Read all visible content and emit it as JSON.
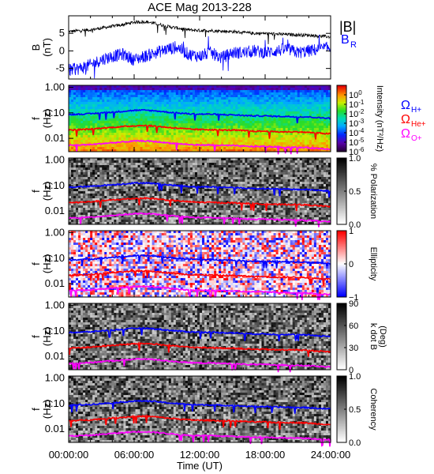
{
  "title": "ACE Mag 2013-228",
  "xlabel": "Time (UT)",
  "x_ticks": [
    "00:00:00",
    "06:00:00",
    "12:00:00",
    "18:00:00",
    "24:00:00"
  ],
  "colors": {
    "black": "#000000",
    "blue": "#0000ff",
    "red": "#ff0000",
    "magenta": "#ff00ff"
  },
  "chart_data": [
    {
      "type": "line",
      "title": "ACE Mag 2013-228",
      "xlabel": "",
      "ylabel": "B (nT)",
      "xlim": [
        0,
        24
      ],
      "ylim": [
        -8,
        10
      ],
      "y_ticks": [
        "5",
        "0",
        "-5"
      ],
      "y_tick_values": [
        5,
        0,
        -5
      ],
      "series": [
        {
          "name": "|B|",
          "color": "#000000",
          "x": [
            0,
            1,
            2,
            3,
            4,
            5,
            6,
            7,
            8,
            9,
            10,
            11,
            12,
            13,
            14,
            15,
            16,
            17,
            18,
            19,
            20,
            21,
            22,
            23,
            24
          ],
          "values": [
            5.5,
            5.8,
            6.0,
            6.5,
            7.0,
            7.5,
            8.2,
            8.3,
            7.8,
            7.0,
            6.5,
            6.0,
            5.8,
            5.8,
            5.6,
            5.5,
            5.2,
            5.0,
            5.0,
            4.8,
            4.7,
            4.6,
            4.5,
            4.2,
            4.0
          ]
        },
        {
          "name": "B",
          "subscript": "R",
          "color": "#0000ff",
          "x": [
            0,
            1,
            2,
            3,
            4,
            5,
            6,
            7,
            8,
            9,
            10,
            11,
            12,
            13,
            14,
            15,
            16,
            17,
            18,
            19,
            20,
            21,
            22,
            23,
            24
          ],
          "values": [
            -5.5,
            -5.0,
            -4.0,
            -2.5,
            -1.5,
            -1.0,
            -2.5,
            -1.5,
            -0.5,
            0.5,
            1.0,
            -1.0,
            -1.5,
            -0.5,
            -2.0,
            -0.5,
            -0.5,
            0.0,
            -0.5,
            0.0,
            0.5,
            -0.5,
            0.0,
            0.5,
            1.0
          ]
        }
      ],
      "legend_placement": "right"
    },
    {
      "type": "heatmap",
      "ylabel": "f (Hz)",
      "y_scale": "log",
      "ylim": [
        0.003,
        1.2
      ],
      "y_ticks": [
        "1.00",
        "0.10",
        "0.01"
      ],
      "y_tick_values": [
        1,
        0.1,
        0.01
      ],
      "colorbar": {
        "label": "Intensity (nT²/Hz)",
        "scale": "log",
        "range": [
          1e-06,
          10.0
        ],
        "colormap": "rainbow",
        "ticks": [
          "10",
          "10",
          "10",
          "10",
          "10",
          "10",
          "10"
        ],
        "tick_exponents": [
          "0",
          "-1",
          "-2",
          "-3",
          "-4",
          "-5",
          "-6"
        ],
        "tick_values": [
          1,
          0.1,
          0.01,
          0.001,
          0.0001,
          1e-05,
          1e-06
        ]
      },
      "legend": [
        {
          "name": "Ω",
          "subscript": "H+",
          "color": "#0000ff"
        },
        {
          "name": "Ω",
          "subscript": "He+",
          "color": "#ff0000"
        },
        {
          "name": "Ω",
          "subscript": "O+",
          "color": "#ff00ff"
        }
      ],
      "legend_placement": "right"
    },
    {
      "type": "heatmap",
      "ylabel": "f (Hz)",
      "y_scale": "log",
      "ylim": [
        0.003,
        1.2
      ],
      "y_ticks": [
        "1.00",
        "0.10",
        "0.01"
      ],
      "y_tick_values": [
        1,
        0.1,
        0.01
      ],
      "colorbar": {
        "label": "% Polarization",
        "range": [
          0,
          1
        ],
        "colormap": "gray",
        "ticks": [
          "1.0",
          "0.5",
          "0.0"
        ],
        "tick_values": [
          1.0,
          0.5,
          0.0
        ]
      }
    },
    {
      "type": "heatmap",
      "ylabel": "f (Hz)",
      "y_scale": "log",
      "ylim": [
        0.003,
        1.2
      ],
      "y_ticks": [
        "1.00",
        "0.10",
        "0.01"
      ],
      "y_tick_values": [
        1,
        0.1,
        0.01
      ],
      "colorbar": {
        "label": "Ellipticity",
        "range": [
          -1,
          1
        ],
        "colormap": "blue-white-red",
        "ticks": [
          "1",
          "0",
          "−1"
        ],
        "tick_values": [
          1,
          0,
          -1
        ]
      }
    },
    {
      "type": "heatmap",
      "ylabel": "f (Hz)",
      "y_scale": "log",
      "ylim": [
        0.003,
        1.2
      ],
      "y_ticks": [
        "1.00",
        "0.10",
        "0.01"
      ],
      "y_tick_values": [
        1,
        0.1,
        0.01
      ],
      "colorbar": {
        "label": "k dot B (Deg)",
        "label_line1": "k dot B",
        "label_line2": "(Deg)",
        "range": [
          0,
          90
        ],
        "colormap": "gray",
        "ticks": [
          "90",
          "60",
          "30",
          "0"
        ],
        "tick_values": [
          90,
          60,
          30,
          0
        ]
      }
    },
    {
      "type": "heatmap",
      "ylabel": "f (Hz)",
      "y_scale": "log",
      "ylim": [
        0.003,
        1.2
      ],
      "y_ticks": [
        "1.00",
        "0.10",
        "0.01"
      ],
      "y_tick_values": [
        1,
        0.1,
        0.01
      ],
      "colorbar": {
        "label": "Coherency",
        "range": [
          0,
          1
        ],
        "colormap": "gray",
        "ticks": [
          "1.0",
          "0.5",
          "0.0"
        ],
        "tick_values": [
          1.0,
          0.5,
          0.0
        ]
      }
    }
  ],
  "gyrofrequency_curves": {
    "x": [
      0,
      1,
      2,
      3,
      4,
      5,
      6,
      7,
      8,
      9,
      10,
      11,
      12,
      13,
      14,
      15,
      16,
      17,
      18,
      19,
      20,
      21,
      22,
      23,
      24
    ],
    "H+": [
      0.085,
      0.089,
      0.092,
      0.1,
      0.107,
      0.115,
      0.125,
      0.127,
      0.119,
      0.107,
      0.099,
      0.092,
      0.089,
      0.089,
      0.085,
      0.084,
      0.079,
      0.076,
      0.076,
      0.073,
      0.072,
      0.07,
      0.069,
      0.064,
      0.061
    ],
    "He+": [
      0.021,
      0.022,
      0.023,
      0.025,
      0.027,
      0.029,
      0.031,
      0.032,
      0.03,
      0.027,
      0.025,
      0.023,
      0.022,
      0.022,
      0.021,
      0.021,
      0.02,
      0.019,
      0.019,
      0.018,
      0.018,
      0.018,
      0.017,
      0.016,
      0.015
    ],
    "O+": [
      0.0053,
      0.0055,
      0.0057,
      0.0062,
      0.0067,
      0.0072,
      0.0078,
      0.0079,
      0.0074,
      0.0067,
      0.0062,
      0.0057,
      0.0055,
      0.0055,
      0.0053,
      0.0052,
      0.0049,
      0.0048,
      0.0048,
      0.0046,
      0.0045,
      0.0044,
      0.0043,
      0.004,
      0.0038
    ]
  }
}
